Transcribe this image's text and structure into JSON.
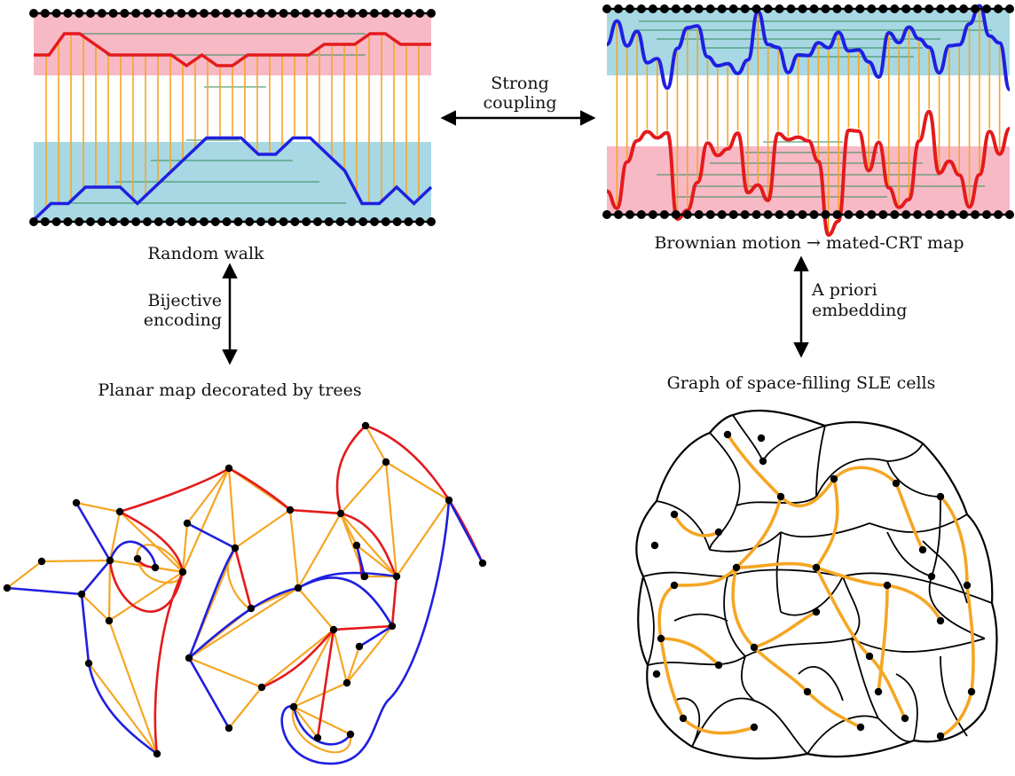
{
  "labels": {
    "top_left_caption": "Random walk",
    "top_right_caption": "Brownian motion → mated-CRT map",
    "bottom_left_caption": "Planar map decorated by trees",
    "bottom_right_caption": "Graph of space-filling SLE cells",
    "coupling_line1": "Strong",
    "coupling_line2": "coupling",
    "bijective_line1": "Bijective",
    "bijective_line2": "encoding",
    "apriori_line1": "A priori",
    "apriori_line2": "embedding"
  },
  "colors": {
    "upper_path": "#e41a1c",
    "lower_path": "#1f1fe0",
    "edge_orange": "#f5a623",
    "fill_pink": "#f8b9c6",
    "fill_blue": "#a8d8e4",
    "chord_green": "#2e8b57",
    "vertex": "#000000"
  },
  "random_walk": {
    "upper_heights": [
      0,
      0,
      2,
      2,
      1,
      0,
      0,
      0,
      0,
      0,
      -1,
      0,
      -1,
      -1,
      0,
      0,
      0,
      0,
      0,
      1,
      1,
      1,
      2,
      2,
      1,
      1,
      1
    ],
    "lower_heights": [
      0,
      1,
      1,
      2,
      2,
      2,
      1,
      2,
      3,
      4,
      5,
      5,
      5,
      4,
      4,
      5,
      5,
      4,
      3,
      1,
      1,
      2,
      1,
      2
    ]
  }
}
